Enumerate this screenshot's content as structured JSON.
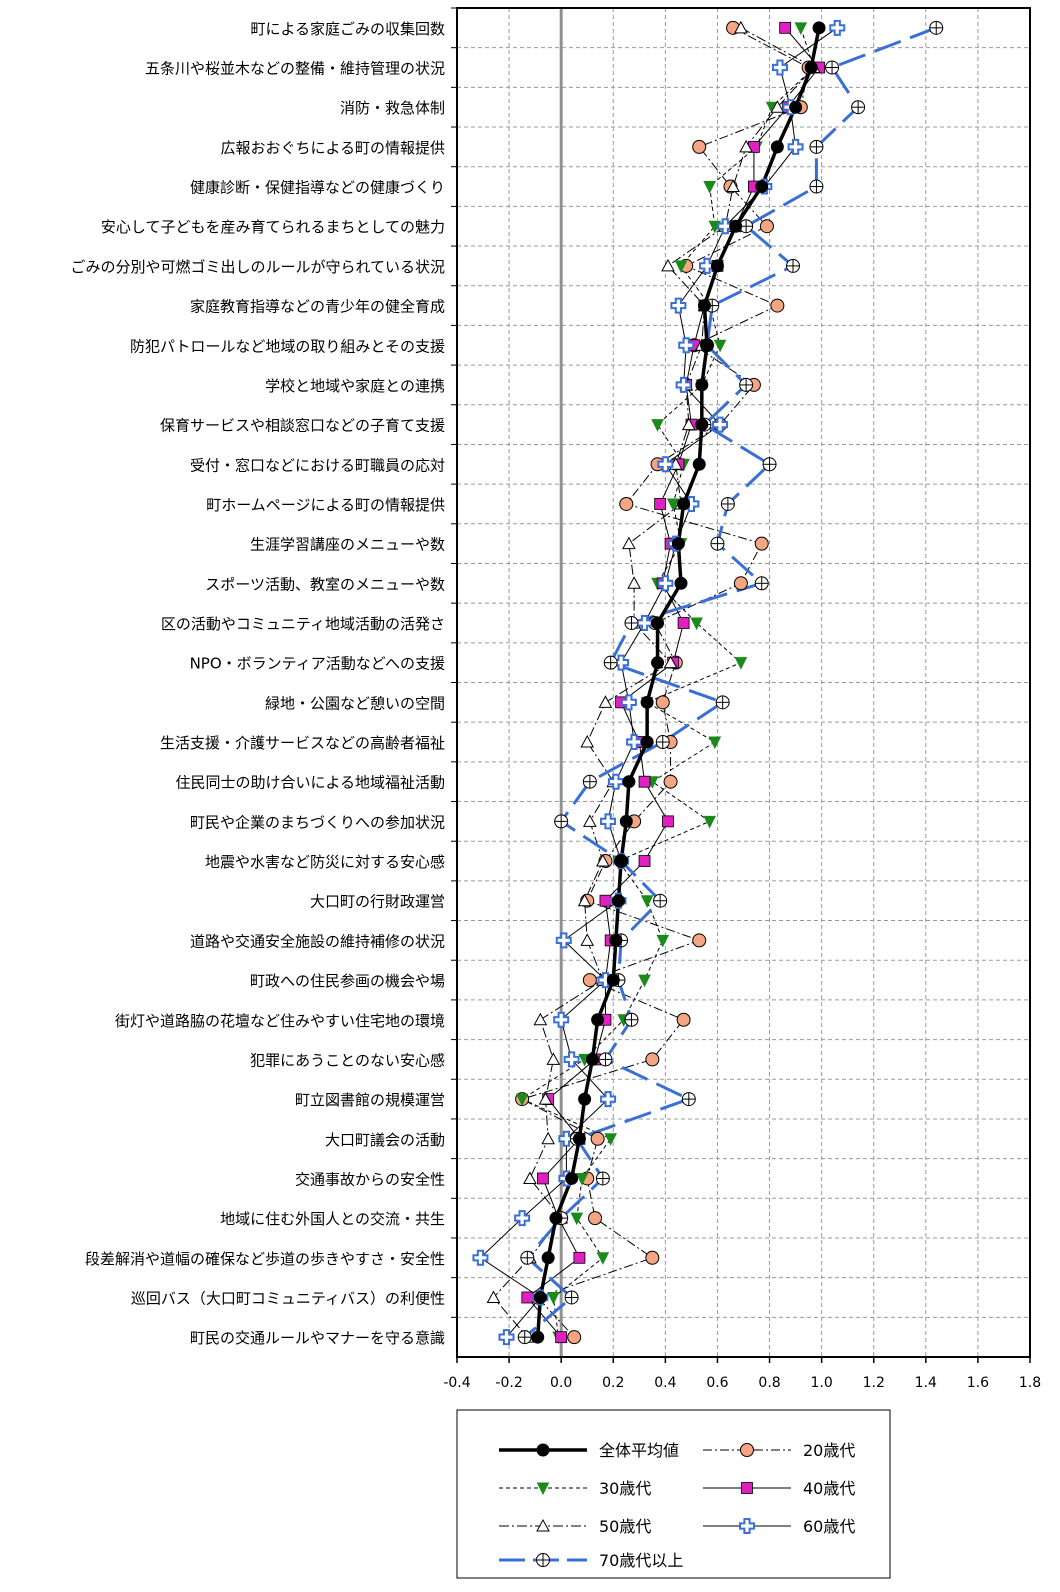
{
  "chart_data": {
    "type": "line",
    "title": "",
    "xlabel": "",
    "ylabel": "",
    "xlim": [
      -0.4,
      1.8
    ],
    "xticks": [
      "-0.4",
      "-0.2",
      "0.0",
      "0.2",
      "0.4",
      "0.6",
      "0.8",
      "1.0",
      "1.2",
      "1.4",
      "1.6",
      "1.8"
    ],
    "grid": true,
    "legend_position": "bottom",
    "categories": [
      "町による家庭ごみの収集回数",
      "五条川や桜並木などの整備・維持管理の状況",
      "消防・救急体制",
      "広報おおぐちによる町の情報提供",
      "健康診断・保健指導などの健康づくり",
      "安心して子どもを産み育てられるまちとしての魅力",
      "ごみの分別や可燃ゴミ出しのルールが守られている状況",
      "家庭教育指導などの青少年の健全育成",
      "防犯パトロールなど地域の取り組みとその支援",
      "学校と地域や家庭との連携",
      "保育サービスや相談窓口などの子育て支援",
      "受付・窓口などにおける町職員の応対",
      "町ホームページによる町の情報提供",
      "生涯学習講座のメニューや数",
      "スポーツ活動、教室のメニューや数",
      "区の活動やコミュニティ地域活動の活発さ",
      "NPO・ボランティア活動などへの支援",
      "緑地・公園など憩いの空間",
      "生活支援・介護サービスなどの高齢者福祉",
      "住民同士の助け合いによる地域福祉活動",
      "町民や企業のまちづくりへの参加状況",
      "地震や水害など防災に対する安心感",
      "大口町の行財政運営",
      "道路や交通安全施設の維持補修の状況",
      "町政への住民参画の機会や場",
      "街灯や道路脇の花壇など住みやすい住宅地の環境",
      "犯罪にあうことのない安心感",
      "町立図書館の規模運営",
      "大口町議会の活動",
      "交通事故からの安全性",
      "地域に住む外国人との交流・共生",
      "段差解消や道幅の確保など歩道の歩きやすさ・安全性",
      "巡回バス（大口町コミュニティバス）の利便性",
      "町民の交通ルールやマナーを守る意識"
    ],
    "series": [
      {
        "name": "全体平均値",
        "color": "#000000",
        "marker": "circle-filled",
        "values": [
          0.99,
          0.96,
          0.9,
          0.83,
          0.77,
          0.67,
          0.6,
          0.55,
          0.56,
          0.54,
          0.54,
          0.53,
          0.47,
          0.45,
          0.46,
          0.37,
          0.37,
          0.33,
          0.33,
          0.26,
          0.25,
          0.23,
          0.22,
          0.21,
          0.2,
          0.14,
          0.12,
          0.09,
          0.07,
          0.04,
          -0.02,
          -0.05,
          -0.08,
          -0.09
        ]
      },
      {
        "name": "20歳代",
        "color": "#f4a582",
        "marker": "circle",
        "values": [
          0.66,
          0.95,
          0.92,
          0.53,
          0.65,
          0.79,
          0.48,
          0.83,
          0.51,
          0.74,
          0.61,
          0.37,
          0.25,
          0.77,
          0.69,
          0.36,
          0.44,
          0.39,
          0.42,
          0.42,
          0.28,
          0.17,
          0.1,
          0.53,
          0.11,
          0.47,
          0.35,
          -0.15,
          0.14,
          0.1,
          0.13,
          0.35,
          -0.09,
          0.05
        ]
      },
      {
        "name": "30歳代",
        "color": "#1a8a1a",
        "marker": "triangle-down-filled",
        "values": [
          0.92,
          0.97,
          0.81,
          0.75,
          0.57,
          0.59,
          0.46,
          0.57,
          0.61,
          0.54,
          0.37,
          0.47,
          0.43,
          0.46,
          0.37,
          0.52,
          0.69,
          0.33,
          0.59,
          0.35,
          0.57,
          0.22,
          0.33,
          0.39,
          0.32,
          0.24,
          0.09,
          -0.15,
          0.19,
          0.08,
          0.06,
          0.16,
          -0.03,
          -0.01
        ]
      },
      {
        "name": "40歳代",
        "color": "#e020c0",
        "marker": "square-filled",
        "values": [
          0.86,
          0.99,
          0.87,
          0.74,
          0.74,
          0.67,
          0.6,
          0.55,
          0.51,
          0.48,
          0.5,
          0.45,
          0.38,
          0.42,
          0.39,
          0.47,
          0.43,
          0.23,
          0.3,
          0.32,
          0.41,
          0.32,
          0.17,
          0.19,
          0.17,
          0.17,
          0.13,
          -0.05,
          0.07,
          -0.07,
          -0.01,
          0.07,
          -0.13,
          0.0
        ]
      },
      {
        "name": "50歳代",
        "color": "#000000",
        "marker": "triangle-up",
        "values": [
          0.69,
          0.97,
          0.83,
          0.71,
          0.66,
          0.63,
          0.41,
          0.55,
          0.54,
          0.48,
          0.49,
          0.44,
          0.46,
          0.26,
          0.28,
          0.28,
          0.42,
          0.17,
          0.1,
          0.2,
          0.11,
          0.16,
          0.09,
          0.1,
          0.16,
          -0.08,
          -0.03,
          -0.06,
          -0.05,
          -0.12,
          0.0,
          -0.12,
          -0.26,
          -0.13
        ]
      },
      {
        "name": "60歳代",
        "color": "#3a6fd8",
        "marker": "plus-cross",
        "values": [
          1.06,
          0.84,
          0.88,
          0.9,
          0.78,
          0.63,
          0.56,
          0.45,
          0.48,
          0.47,
          0.61,
          0.4,
          0.5,
          0.44,
          0.4,
          0.32,
          0.23,
          0.26,
          0.28,
          0.21,
          0.18,
          0.23,
          0.22,
          0.01,
          0.17,
          0.0,
          0.04,
          0.18,
          0.02,
          0.02,
          -0.15,
          -0.31,
          -0.08,
          -0.21
        ]
      },
      {
        "name": "70歳代以上",
        "color": "#3a6fd8",
        "marker": "circle-cross",
        "dashed": true,
        "values": [
          1.44,
          1.04,
          1.14,
          0.98,
          0.98,
          0.71,
          0.89,
          0.58,
          0.56,
          0.71,
          0.55,
          0.8,
          0.64,
          0.6,
          0.77,
          0.27,
          0.19,
          0.62,
          0.39,
          0.11,
          0.0,
          0.23,
          0.38,
          0.23,
          0.22,
          0.27,
          0.17,
          0.49,
          0.06,
          0.16,
          0.0,
          -0.13,
          0.04,
          -0.14
        ]
      }
    ]
  }
}
